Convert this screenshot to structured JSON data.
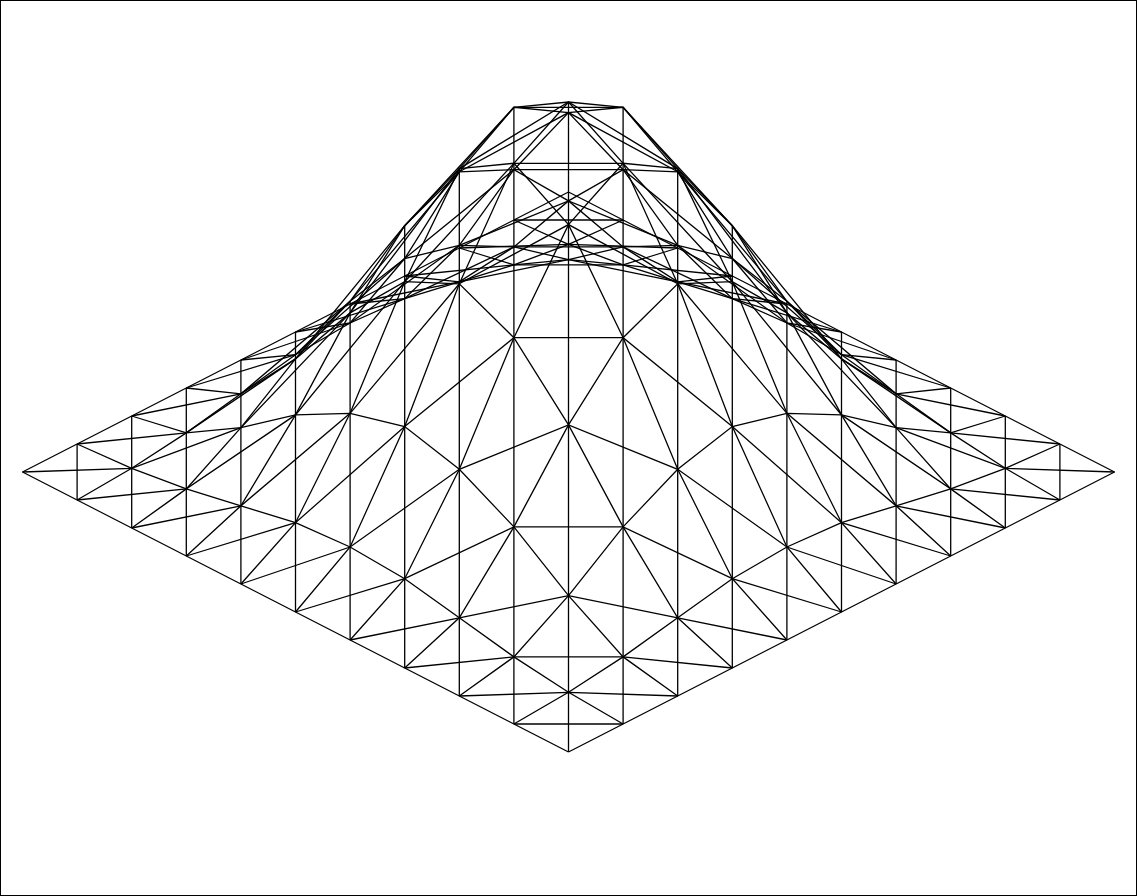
{
  "chart_data": {
    "type": "surface",
    "x": [
      -5,
      -4,
      -3,
      -2,
      -1,
      0,
      1,
      2,
      3,
      4,
      5
    ],
    "y": [
      -5,
      -4,
      -3,
      -2,
      -1,
      0,
      1,
      2,
      3,
      4,
      5
    ],
    "z": [
      [
        0,
        0,
        0,
        0,
        0,
        0,
        0,
        0,
        0,
        0,
        0
      ],
      [
        0,
        0.01,
        0.03,
        0.06,
        0.09,
        0.1,
        0.09,
        0.06,
        0.03,
        0.01,
        0
      ],
      [
        0,
        0.03,
        0.12,
        0.23,
        0.31,
        0.35,
        0.31,
        0.23,
        0.12,
        0.03,
        0
      ],
      [
        0,
        0.06,
        0.23,
        0.43,
        0.59,
        0.66,
        0.59,
        0.43,
        0.23,
        0.06,
        0
      ],
      [
        0,
        0.09,
        0.31,
        0.59,
        0.82,
        0.91,
        0.82,
        0.59,
        0.31,
        0.09,
        0
      ],
      [
        0,
        0.1,
        0.35,
        0.66,
        0.91,
        1,
        0.91,
        0.66,
        0.35,
        0.1,
        0
      ],
      [
        0,
        0.09,
        0.31,
        0.59,
        0.82,
        0.91,
        0.82,
        0.59,
        0.31,
        0.09,
        0
      ],
      [
        0,
        0.06,
        0.23,
        0.43,
        0.59,
        0.66,
        0.59,
        0.43,
        0.23,
        0.06,
        0
      ],
      [
        0,
        0.03,
        0.12,
        0.23,
        0.31,
        0.35,
        0.31,
        0.23,
        0.12,
        0.03,
        0
      ],
      [
        0,
        0.01,
        0.03,
        0.06,
        0.09,
        0.1,
        0.09,
        0.06,
        0.03,
        0.01,
        0
      ],
      [
        0,
        0,
        0,
        0,
        0,
        0,
        0,
        0,
        0,
        0,
        0
      ]
    ],
    "color": "#000000",
    "tick_labels": false
  }
}
